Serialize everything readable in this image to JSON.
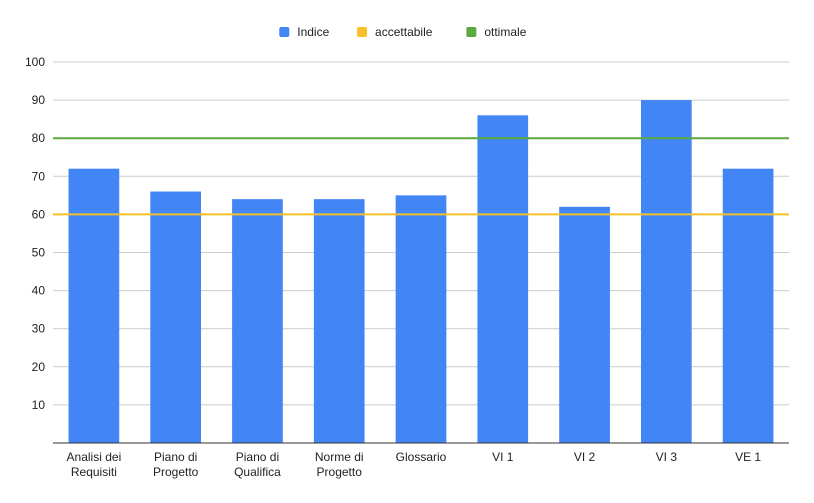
{
  "chart_data": {
    "type": "bar",
    "title": "",
    "xlabel": "",
    "ylabel": "",
    "categories": [
      [
        "Analisi dei",
        "Requisiti"
      ],
      [
        "Piano di",
        "Progetto"
      ],
      [
        "Piano di",
        "Qualifica"
      ],
      [
        "Norme di",
        "Progetto"
      ],
      [
        "Glossario"
      ],
      [
        "VI 1"
      ],
      [
        "VI 2"
      ],
      [
        "VI 3"
      ],
      [
        "VE 1"
      ]
    ],
    "series": [
      {
        "name": "Indice",
        "values": [
          72,
          66,
          64,
          64,
          65,
          86,
          62,
          90,
          72
        ],
        "color": "#4285f4"
      }
    ],
    "reference_lines": [
      {
        "name": "accettabile",
        "value": 60,
        "color": "#f6c026"
      },
      {
        "name": "ottimale",
        "value": 80,
        "color": "#5aa83e"
      }
    ],
    "ylim": [
      0,
      100
    ],
    "yticks": [
      10,
      20,
      30,
      40,
      50,
      60,
      70,
      80,
      90,
      100
    ],
    "grid": true,
    "legend_position": "top-center",
    "colors": {
      "grid": "#cccccc",
      "axis": "#333333"
    }
  }
}
